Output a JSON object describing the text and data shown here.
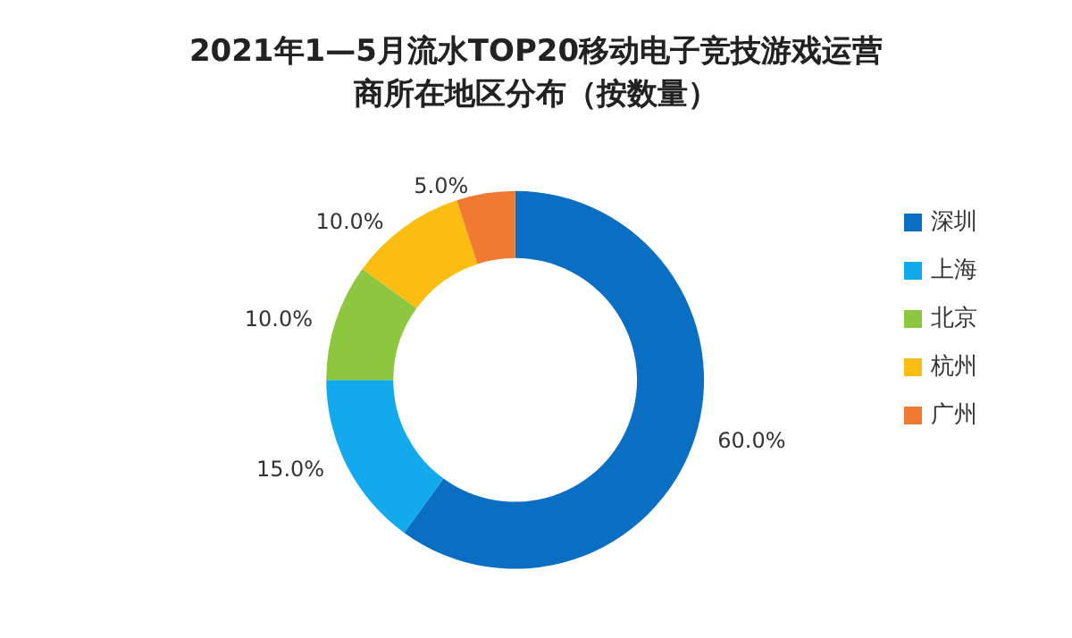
{
  "chart_data": {
    "type": "donut",
    "title": "2021年1—5月流水TOP20移动电子竞技游戏运营商所在地区分布（按数量）",
    "categories": [
      "深圳",
      "上海",
      "北京",
      "杭州",
      "广州"
    ],
    "values": [
      60,
      15,
      10,
      10,
      5
    ],
    "colors": [
      "#0a6fc2",
      "#12aaec",
      "#8dc63f",
      "#fbbd12",
      "#f07a31"
    ],
    "value_labels": [
      "60.0%",
      "15.0%",
      "10.0%",
      "10.0%",
      "5.0%"
    ],
    "legend": "right"
  }
}
